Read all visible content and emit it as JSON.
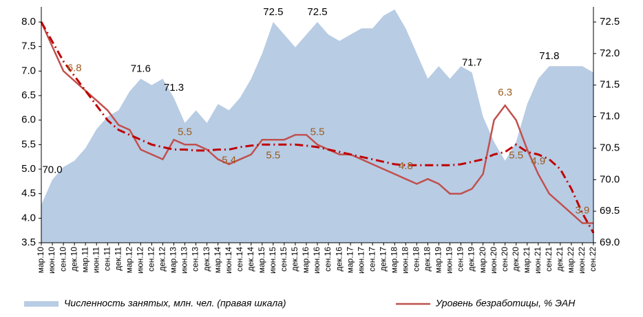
{
  "chart_data": {
    "type": "line",
    "categories": [
      "мар.10",
      "июн.10",
      "сен.10",
      "дек.10",
      "мар.11",
      "июн.11",
      "сен.11",
      "дек.11",
      "мар.12",
      "июн.12",
      "сен.12",
      "дек.12",
      "мар.13",
      "июн.13",
      "сен.13",
      "дек.13",
      "мар.14",
      "июн.14",
      "сен.14",
      "дек.14",
      "мар.15",
      "июн.15",
      "сен.15",
      "дек.15",
      "мар.16",
      "июн.16",
      "сен.16",
      "дек.16",
      "мар.17",
      "июн.17",
      "сен.17",
      "дек.17",
      "мар.18",
      "июн.18",
      "сен.18",
      "дек.18",
      "мар.19",
      "июн.19",
      "сен.19",
      "дек.19",
      "мар.20",
      "июн.20",
      "сен.20",
      "дек.20",
      "мар.21",
      "июн.21",
      "сен.21",
      "дек.21",
      "мар.22",
      "июн.22",
      "сен.22"
    ],
    "series": [
      {
        "name": "Численность занятых, млн. чел. (правая шкала)",
        "type": "area",
        "axis": "y2",
        "color": "#b8cce4",
        "values": [
          69.6,
          70.0,
          70.2,
          70.3,
          70.5,
          70.8,
          71.0,
          71.1,
          71.4,
          71.6,
          71.5,
          71.6,
          71.3,
          70.9,
          71.1,
          70.9,
          71.2,
          71.1,
          71.3,
          71.6,
          72.0,
          72.5,
          72.3,
          72.1,
          72.3,
          72.5,
          72.3,
          72.2,
          72.3,
          72.4,
          72.4,
          72.6,
          72.7,
          72.4,
          72.0,
          71.6,
          71.8,
          71.6,
          71.8,
          71.7,
          71.0,
          70.6,
          70.3,
          70.6,
          71.2,
          71.6,
          71.8,
          71.8,
          71.8,
          71.8,
          71.7
        ],
        "value_labels": [
          null,
          "70.0",
          null,
          null,
          null,
          null,
          null,
          null,
          null,
          "71.6",
          null,
          null,
          "71.3",
          null,
          null,
          null,
          null,
          null,
          null,
          null,
          null,
          "72.5",
          null,
          null,
          null,
          "72.5",
          null,
          null,
          null,
          null,
          null,
          null,
          null,
          null,
          null,
          null,
          null,
          null,
          null,
          "71.7",
          null,
          null,
          null,
          null,
          null,
          null,
          "71.8",
          null,
          null,
          null,
          null
        ]
      },
      {
        "name": "Уровень безработицы, % ЭАН",
        "type": "line",
        "color": "#c0504d",
        "values": [
          8.0,
          7.5,
          7.0,
          6.8,
          6.6,
          6.4,
          6.2,
          5.9,
          5.8,
          5.4,
          5.3,
          5.2,
          5.6,
          5.5,
          5.5,
          5.4,
          5.2,
          5.1,
          5.2,
          5.3,
          5.6,
          5.6,
          5.6,
          5.7,
          5.7,
          5.5,
          5.4,
          5.3,
          5.3,
          5.2,
          5.1,
          5.0,
          4.9,
          4.8,
          4.7,
          4.8,
          4.7,
          4.5,
          4.5,
          4.6,
          4.9,
          6.0,
          6.3,
          6.0,
          5.4,
          4.9,
          4.5,
          4.3,
          4.1,
          3.9,
          3.9
        ],
        "value_labels": [
          null,
          null,
          null,
          "6.8",
          null,
          null,
          null,
          null,
          null,
          null,
          null,
          null,
          null,
          "5.5",
          null,
          null,
          null,
          null,
          null,
          null,
          null,
          null,
          null,
          null,
          null,
          "5.5",
          null,
          null,
          null,
          null,
          null,
          null,
          null,
          "4.8",
          null,
          null,
          null,
          null,
          null,
          null,
          null,
          null,
          "6.3",
          null,
          null,
          "4.9",
          null,
          null,
          null,
          "3.9",
          null
        ]
      },
      {
        "type": "trend",
        "color": "#c00000",
        "values": [
          8.0,
          7.6,
          7.2,
          6.9,
          6.6,
          6.3,
          6.0,
          5.8,
          5.7,
          5.6,
          5.5,
          5.45,
          5.4,
          5.4,
          5.38,
          5.38,
          5.4,
          5.4,
          5.45,
          5.48,
          5.5,
          5.5,
          5.5,
          5.5,
          5.48,
          5.45,
          5.4,
          5.35,
          5.3,
          5.25,
          5.2,
          5.15,
          5.1,
          5.08,
          5.08,
          5.08,
          5.08,
          5.08,
          5.1,
          5.15,
          5.2,
          5.3,
          5.35,
          5.5,
          5.35,
          5.3,
          5.2,
          5.0,
          4.6,
          4.1,
          3.7
        ],
        "value_labels": [
          null,
          null,
          null,
          null,
          null,
          null,
          null,
          null,
          null,
          null,
          null,
          null,
          null,
          null,
          null,
          null,
          null,
          "5.4",
          null,
          null,
          null,
          "5.5",
          null,
          null,
          null,
          null,
          null,
          null,
          null,
          null,
          null,
          null,
          null,
          null,
          null,
          null,
          null,
          null,
          null,
          null,
          null,
          null,
          null,
          "5.5",
          null,
          null,
          null,
          null,
          null,
          null,
          null
        ]
      }
    ],
    "ylim": [
      3.5,
      8.0
    ],
    "yticks": [
      3.5,
      {
        "value": 4,
        "label": "4.0"
      },
      4.5,
      {
        "value": 5,
        "label": "5.0"
      },
      5.5,
      {
        "value": 6,
        "label": "6.0"
      },
      6.5,
      {
        "value": 7,
        "label": "7.0"
      },
      7.5,
      {
        "value": 8,
        "label": "8.0"
      }
    ],
    "y2lim": [
      69.0,
      72.5
    ],
    "y2ticks": [
      {
        "value": 69,
        "label": "69.0"
      },
      69.5,
      {
        "value": 70,
        "label": "70.0"
      },
      70.5,
      {
        "value": 71,
        "label": "71.0"
      },
      71.5,
      {
        "value": 72,
        "label": "72.0"
      },
      72.5
    ],
    "grid": false
  }
}
